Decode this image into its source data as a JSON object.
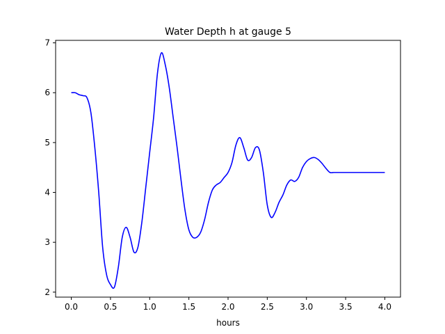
{
  "chart_data": {
    "type": "line",
    "title": "Water Depth h at gauge 5",
    "xlabel": "hours",
    "ylabel": "",
    "xlim": [
      -0.2,
      4.2
    ],
    "ylim": [
      1.9,
      7.05
    ],
    "grid": false,
    "xticks": [
      0.0,
      0.5,
      1.0,
      1.5,
      2.0,
      2.5,
      3.0,
      3.5,
      4.0
    ],
    "xtick_labels": [
      "0.0",
      "0.5",
      "1.0",
      "1.5",
      "2.0",
      "2.5",
      "3.0",
      "3.5",
      "4.0"
    ],
    "yticks": [
      2,
      3,
      4,
      5,
      6,
      7
    ],
    "ytick_labels": [
      "2",
      "3",
      "4",
      "5",
      "6",
      "7"
    ],
    "series": [
      {
        "color": "#0000ff",
        "x": [
          0.0,
          0.05,
          0.1,
          0.15,
          0.2,
          0.25,
          0.3,
          0.35,
          0.4,
          0.45,
          0.5,
          0.55,
          0.6,
          0.65,
          0.7,
          0.75,
          0.8,
          0.85,
          0.9,
          0.95,
          1.0,
          1.05,
          1.1,
          1.15,
          1.2,
          1.25,
          1.3,
          1.35,
          1.4,
          1.45,
          1.5,
          1.55,
          1.6,
          1.65,
          1.7,
          1.75,
          1.8,
          1.85,
          1.9,
          1.95,
          2.0,
          2.05,
          2.1,
          2.15,
          2.2,
          2.25,
          2.3,
          2.35,
          2.4,
          2.45,
          2.5,
          2.55,
          2.6,
          2.65,
          2.7,
          2.75,
          2.8,
          2.85,
          2.9,
          2.95,
          3.0,
          3.05,
          3.1,
          3.15,
          3.2,
          3.25,
          3.3,
          3.35,
          3.4,
          3.45,
          3.5,
          3.55,
          3.6,
          3.65,
          3.7,
          3.75,
          3.8,
          3.85,
          3.9,
          3.95,
          4.0
        ],
        "y": [
          6.0,
          6.0,
          5.96,
          5.94,
          5.9,
          5.6,
          4.9,
          4.0,
          2.9,
          2.35,
          2.15,
          2.1,
          2.5,
          3.1,
          3.3,
          3.1,
          2.8,
          2.9,
          3.4,
          4.1,
          4.8,
          5.5,
          6.4,
          6.8,
          6.55,
          6.1,
          5.5,
          4.9,
          4.25,
          3.65,
          3.25,
          3.1,
          3.1,
          3.2,
          3.45,
          3.8,
          4.05,
          4.15,
          4.2,
          4.3,
          4.4,
          4.6,
          4.95,
          5.1,
          4.9,
          4.65,
          4.7,
          4.9,
          4.85,
          4.4,
          3.75,
          3.5,
          3.6,
          3.8,
          3.95,
          4.15,
          4.25,
          4.22,
          4.3,
          4.5,
          4.62,
          4.68,
          4.7,
          4.66,
          4.58,
          4.48,
          4.4,
          4.4,
          4.4,
          4.4,
          4.4,
          4.4,
          4.4,
          4.4,
          4.4,
          4.4,
          4.4,
          4.4,
          4.4,
          4.4,
          4.4
        ]
      }
    ]
  }
}
